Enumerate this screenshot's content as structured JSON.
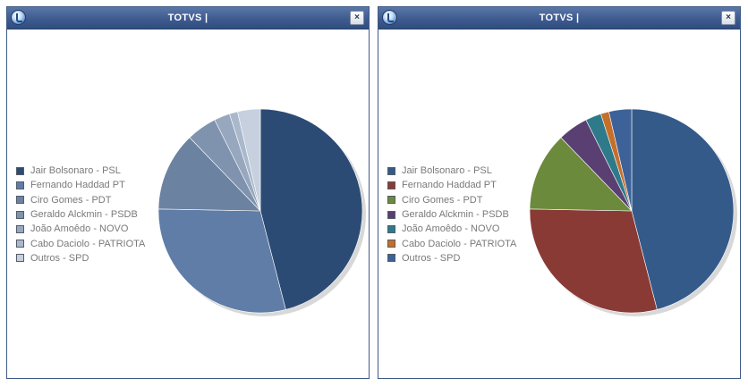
{
  "windows": [
    {
      "title": "TOTVS |",
      "close_label": "×",
      "chart_data": {
        "type": "pie",
        "labels": [
          "Jair Bolsonaro - PSL",
          "Fernando Haddad PT",
          "Ciro Gomes - PDT",
          "Geraldo Alckmin - PSDB",
          "João Amoêdo - NOVO",
          "Cabo Daciolo - PATRIOTA",
          "Outros - SPD"
        ],
        "values": [
          46.0,
          29.3,
          12.5,
          4.8,
          2.5,
          1.3,
          3.6
        ],
        "colors": [
          "#2c4b74",
          "#5f7da6",
          "#6b82a1",
          "#7f93ae",
          "#97a7be",
          "#aab8cc",
          "#c6d0de"
        ],
        "legend_position": "left"
      }
    },
    {
      "title": "TOTVS |",
      "close_label": "×",
      "chart_data": {
        "type": "pie",
        "labels": [
          "Jair Bolsonaro - PSL",
          "Fernando Haddad PT",
          "Ciro Gomes - PDT",
          "Geraldo Alckmin - PSDB",
          "João Amoêdo - NOVO",
          "Cabo Daciolo - PATRIOTA",
          "Outros - SPD"
        ],
        "values": [
          46.0,
          29.3,
          12.5,
          4.8,
          2.5,
          1.3,
          3.6
        ],
        "colors": [
          "#345a8a",
          "#8a3a35",
          "#6c8a3c",
          "#5a3f72",
          "#2f7a8a",
          "#c56f2a",
          "#3d6199"
        ],
        "legend_position": "left"
      }
    }
  ]
}
